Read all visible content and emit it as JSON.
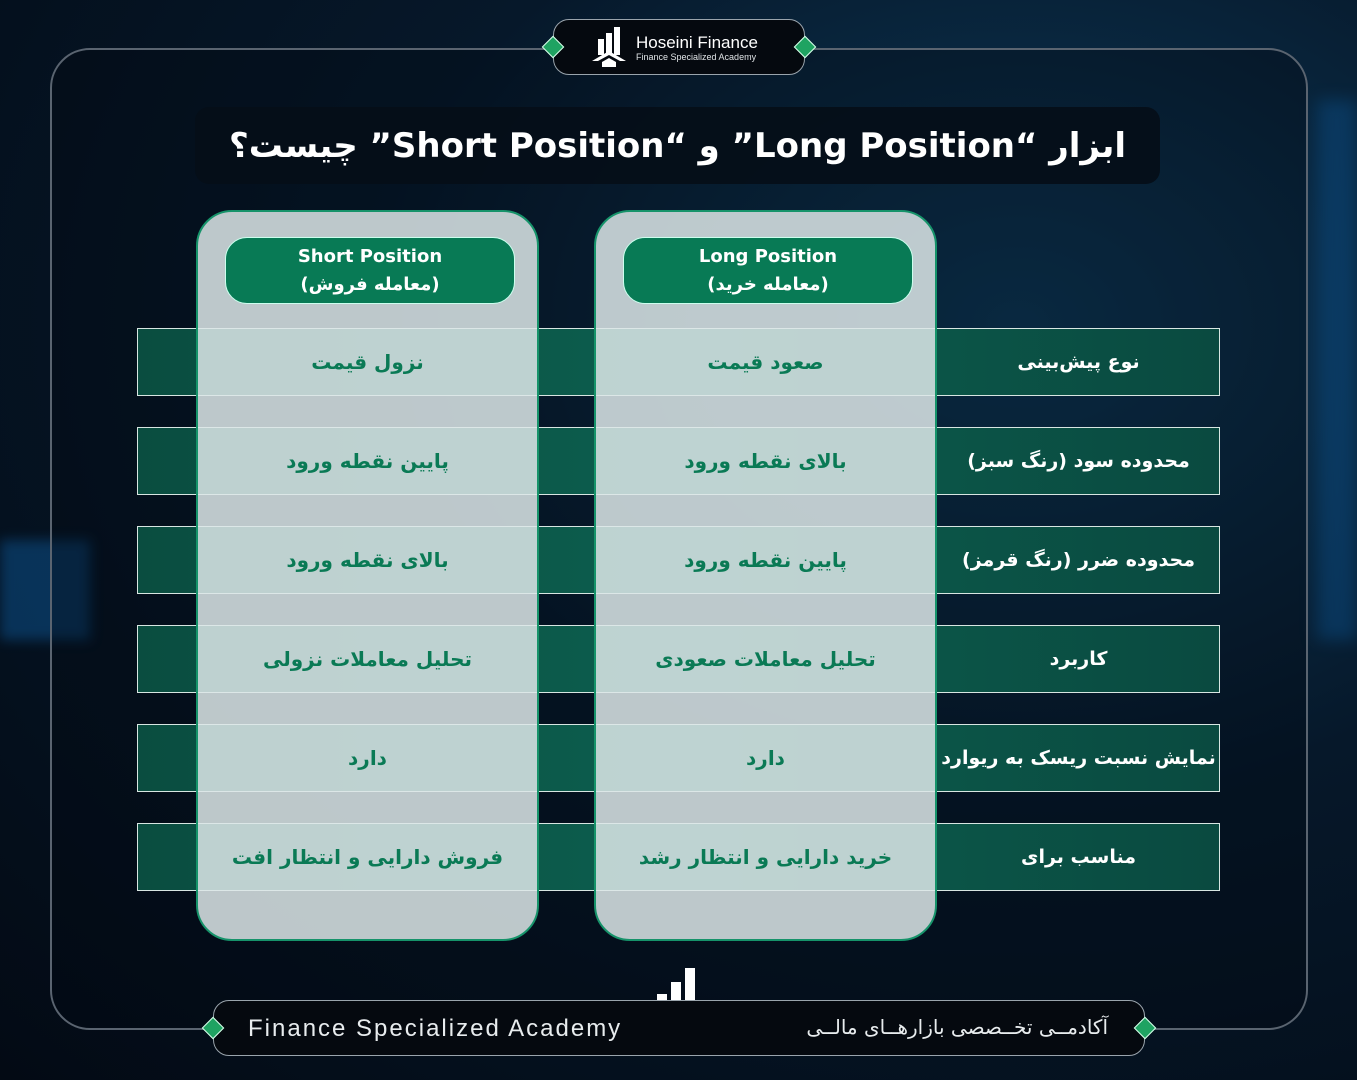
{
  "brand": {
    "name": "Hoseini Finance",
    "tagline": "Finance Specialized Academy"
  },
  "title": "ابزار “Long Position” و “Short Position” چیست؟",
  "columns": [
    {
      "title": "Long Position",
      "subtitle": "(معامله خرید)"
    },
    {
      "title": "Short Position",
      "subtitle": "(معامله فروش)"
    }
  ],
  "rows": [
    {
      "label": "نوع پیش‌بینی",
      "long": "صعود قیمت",
      "short": "نزول قیمت"
    },
    {
      "label": "محدوده سود (رنگ سبز)",
      "long": "بالای نقطه ورود",
      "short": "پایین نقطه ورود"
    },
    {
      "label": "محدوده ضرر (رنگ قرمز)",
      "long": "پایین نقطه ورود",
      "short": "بالای نقطه ورود"
    },
    {
      "label": "کاربرد",
      "long": "تحلیل معاملات صعودی",
      "short": "تحلیل معاملات نزولی"
    },
    {
      "label": "نمایش نسبت ریسک به ریوارد",
      "long": "دارد",
      "short": "دارد"
    },
    {
      "label": "مناسب برای",
      "long": "خرید دارایی و انتظار رشد",
      "short": "فروش دارایی و انتظار افت"
    }
  ],
  "footer": {
    "en": "Finance Specialized Academy",
    "fa": "آکادمــی تخــصصی بازارهــای مالــی"
  },
  "colors": {
    "accent": "#087a55",
    "row": "#0c5e4e",
    "cell_text": "#0a7a55"
  }
}
